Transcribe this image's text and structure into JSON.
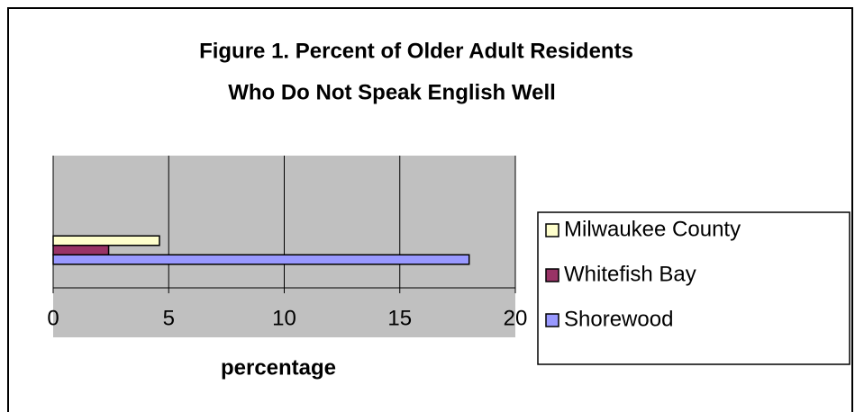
{
  "chart_data": {
    "type": "hbar",
    "title": [
      "Figure 1. Percent of Older Adult Residents",
      "Who Do Not Speak English Well"
    ],
    "x_label": "percentage",
    "categories": [
      null
    ],
    "series": [
      {
        "name": "Milwaukee County",
        "color": "#ffffcc",
        "values": [
          4.6
        ]
      },
      {
        "name": "Whitefish Bay",
        "color": "#993366",
        "values": [
          2.4
        ]
      },
      {
        "name": "Shorewood",
        "color": "#9999ff",
        "values": [
          18
        ]
      }
    ],
    "xlim": [
      0,
      20
    ],
    "xticks": [
      0,
      5,
      10,
      15,
      20
    ],
    "grid": true,
    "legend": "right"
  }
}
